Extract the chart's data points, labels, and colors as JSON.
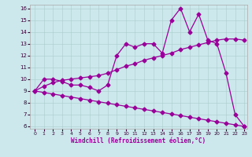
{
  "xlabel": "Windchill (Refroidissement éolien,°C)",
  "bg_color": "#cce8ec",
  "line_color": "#990099",
  "x_jagged": [
    0,
    1,
    2,
    3,
    4,
    5,
    6,
    7,
    8,
    9,
    10,
    11,
    12,
    13,
    14,
    15,
    16,
    17,
    18,
    19,
    20,
    21,
    22,
    23
  ],
  "y_jagged": [
    9.0,
    10.0,
    10.0,
    9.8,
    9.5,
    9.5,
    9.3,
    9.0,
    9.5,
    12.0,
    13.0,
    12.7,
    13.0,
    13.0,
    12.2,
    15.0,
    16.0,
    14.0,
    15.5,
    13.3,
    13.0,
    10.5,
    7.0,
    6.0
  ],
  "x_upper": [
    0,
    1,
    2,
    3,
    4,
    5,
    6,
    7,
    8,
    9,
    10,
    11,
    12,
    13,
    14,
    15,
    16,
    17,
    18,
    19,
    20,
    21,
    22,
    23
  ],
  "y_upper": [
    9.0,
    9.4,
    9.7,
    9.9,
    10.0,
    10.1,
    10.2,
    10.3,
    10.5,
    10.8,
    11.1,
    11.3,
    11.6,
    11.8,
    12.0,
    12.2,
    12.5,
    12.7,
    12.9,
    13.1,
    13.3,
    13.4,
    13.4,
    13.3
  ],
  "x_lower": [
    0,
    1,
    2,
    3,
    4,
    5,
    6,
    7,
    8,
    9,
    10,
    11,
    12,
    13,
    14,
    15,
    16,
    17,
    18,
    19,
    20,
    21,
    22,
    23
  ],
  "y_lower": [
    9.0,
    8.87,
    8.74,
    8.61,
    8.48,
    8.35,
    8.22,
    8.09,
    7.96,
    7.83,
    7.7,
    7.57,
    7.44,
    7.31,
    7.18,
    7.05,
    6.92,
    6.78,
    6.65,
    6.52,
    6.39,
    6.26,
    6.13,
    6.0
  ],
  "xlim": [
    -0.5,
    23.3
  ],
  "ylim": [
    5.8,
    16.3
  ],
  "yticks": [
    6,
    7,
    8,
    9,
    10,
    11,
    12,
    13,
    14,
    15,
    16
  ],
  "xticks": [
    0,
    1,
    2,
    3,
    4,
    5,
    6,
    7,
    8,
    9,
    10,
    11,
    12,
    13,
    14,
    15,
    16,
    17,
    18,
    19,
    20,
    21,
    22,
    23
  ],
  "marker": "D",
  "markersize": 2.5,
  "linewidth": 0.9
}
